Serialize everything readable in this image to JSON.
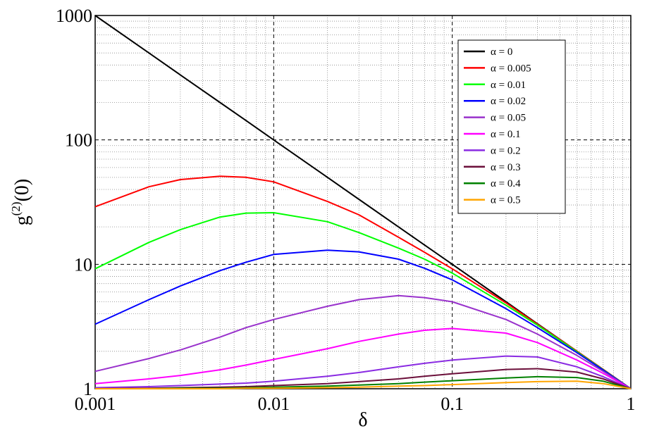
{
  "chart_data": {
    "type": "line",
    "xscale": "log",
    "yscale": "log",
    "xlim": [
      0.001,
      1
    ],
    "ylim": [
      1,
      1000
    ],
    "xlabel": "δ",
    "ylabel": "g(2)(0)",
    "ylabel_main": "g",
    "ylabel_super": "(2)",
    "ylabel_rest": "(0)",
    "grid": "on",
    "legend_position": "top-right",
    "xticks": [
      {
        "value": 0.001,
        "label": "0.001"
      },
      {
        "value": 0.01,
        "label": "0.01"
      },
      {
        "value": 0.1,
        "label": "0.1"
      },
      {
        "value": 1,
        "label": "1"
      }
    ],
    "yticks": [
      {
        "value": 1,
        "label": "1"
      },
      {
        "value": 10,
        "label": "10"
      },
      {
        "value": 100,
        "label": "100"
      },
      {
        "value": 1000,
        "label": "1000"
      }
    ],
    "x": [
      0.001,
      0.002,
      0.003,
      0.005,
      0.007,
      0.01,
      0.02,
      0.03,
      0.05,
      0.07,
      0.1,
      0.2,
      0.3,
      0.5,
      0.7,
      1
    ],
    "series": [
      {
        "name": "α = 0",
        "color": "#000000",
        "values": [
          1000,
          500,
          333,
          200,
          143,
          100,
          50,
          33.3,
          20,
          14.3,
          10,
          5,
          3.33,
          2,
          1.43,
          1
        ]
      },
      {
        "name": "α = 0.005",
        "color": "#ff0000",
        "values": [
          29,
          42,
          48,
          51,
          50,
          46,
          32,
          25,
          16.5,
          12.5,
          9.2,
          4.9,
          3.3,
          2.0,
          1.43,
          1
        ]
      },
      {
        "name": "α = 0.01",
        "color": "#00ff00",
        "values": [
          9.2,
          15,
          19,
          24,
          25.8,
          26,
          22,
          18,
          13.5,
          11,
          8.5,
          4.7,
          3.25,
          1.98,
          1.42,
          1
        ]
      },
      {
        "name": "α = 0.02",
        "color": "#0000ff",
        "values": [
          3.3,
          5.2,
          6.7,
          8.9,
          10.4,
          12,
          13,
          12.6,
          11,
          9.3,
          7.5,
          4.4,
          3.1,
          1.95,
          1.41,
          1
        ]
      },
      {
        "name": "α = 0.05",
        "color": "#9932cc",
        "values": [
          1.38,
          1.75,
          2.05,
          2.6,
          3.1,
          3.6,
          4.6,
          5.2,
          5.6,
          5.4,
          5.0,
          3.6,
          2.75,
          1.85,
          1.38,
          1
        ]
      },
      {
        "name": "α = 0.1",
        "color": "#ff00ff",
        "values": [
          1.1,
          1.2,
          1.28,
          1.42,
          1.55,
          1.72,
          2.1,
          2.4,
          2.75,
          2.95,
          3.05,
          2.8,
          2.35,
          1.7,
          1.33,
          1
        ]
      },
      {
        "name": "α = 0.2",
        "color": "#8a2be2",
        "values": [
          1.02,
          1.04,
          1.06,
          1.09,
          1.11,
          1.15,
          1.26,
          1.35,
          1.5,
          1.6,
          1.7,
          1.83,
          1.8,
          1.5,
          1.25,
          1
        ]
      },
      {
        "name": "α = 0.3",
        "color": "#6b0f3a",
        "values": [
          1.0,
          1.01,
          1.02,
          1.03,
          1.04,
          1.06,
          1.1,
          1.14,
          1.2,
          1.26,
          1.32,
          1.43,
          1.45,
          1.36,
          1.2,
          1
        ]
      },
      {
        "name": "α = 0.4",
        "color": "#008000",
        "values": [
          1.0,
          1.0,
          1.01,
          1.01,
          1.02,
          1.03,
          1.05,
          1.07,
          1.1,
          1.13,
          1.16,
          1.22,
          1.25,
          1.23,
          1.15,
          1
        ]
      },
      {
        "name": "α = 0.5",
        "color": "#ffa500",
        "values": [
          1.0,
          1.0,
          1.0,
          1.0,
          1.01,
          1.01,
          1.02,
          1.03,
          1.05,
          1.06,
          1.08,
          1.12,
          1.14,
          1.15,
          1.1,
          1
        ]
      }
    ]
  }
}
